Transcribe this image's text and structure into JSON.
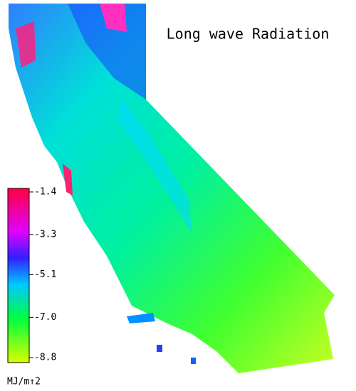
{
  "title": "Long wave Radiation",
  "colorbar": {
    "range": [
      -8.8,
      -1.4
    ],
    "ticks": [
      -1.4,
      -3.3,
      -5.1,
      {
        "value": -7,
        "label": "-7.0"
      },
      -8.8
    ],
    "unit": "MJ/m↑2"
  }
}
